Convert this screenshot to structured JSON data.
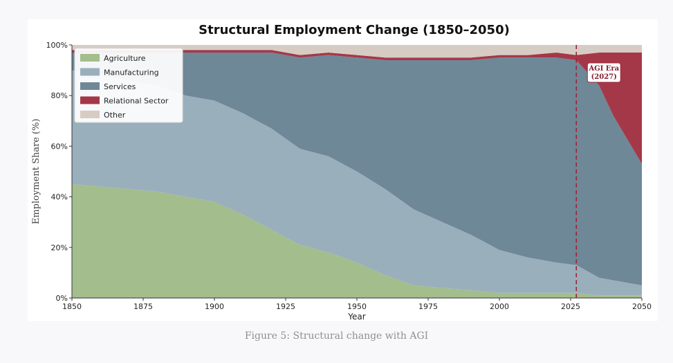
{
  "caption": "Figure 5: Structural change with AGI",
  "chart_data": {
    "type": "area",
    "stacked": true,
    "title": "Structural Employment Change (1850–2050)",
    "xlabel": "Year",
    "ylabel": "Employment Share (%)",
    "xlim": [
      1850,
      2050
    ],
    "ylim": [
      0,
      100
    ],
    "x_ticks": [
      "1850",
      "1875",
      "1900",
      "1925",
      "1950",
      "1975",
      "2000",
      "2025",
      "2050"
    ],
    "y_ticks": [
      "0%",
      "20%",
      "40%",
      "60%",
      "80%",
      "100%"
    ],
    "grid": false,
    "legend_position": "top-left",
    "x": [
      1850,
      1860,
      1870,
      1880,
      1890,
      1900,
      1910,
      1920,
      1930,
      1940,
      1950,
      1960,
      1970,
      1980,
      1990,
      2000,
      2010,
      2020,
      2027,
      2035,
      2040,
      2050
    ],
    "series": [
      {
        "name": "Agriculture",
        "color": "#a3bd8c",
        "values": [
          45,
          44,
          43,
          42,
          40,
          38,
          33,
          27,
          21,
          18,
          14,
          9,
          5,
          4,
          3,
          2,
          2,
          2,
          2,
          1,
          1,
          1
        ]
      },
      {
        "name": "Manufacturing",
        "color": "#9aafbc",
        "values": [
          45,
          44,
          43,
          42,
          40,
          40,
          40,
          40,
          38,
          38,
          36,
          34,
          30,
          26,
          22,
          17,
          14,
          12,
          11,
          7,
          6,
          4
        ]
      },
      {
        "name": "Services",
        "color": "#6e8898",
        "values": [
          7,
          9,
          11,
          13,
          17,
          19,
          24,
          30,
          36,
          40,
          45,
          51,
          59,
          64,
          69,
          76,
          79,
          81,
          81,
          76,
          65,
          48
        ]
      },
      {
        "name": "Relational Sector",
        "color": "#a53848",
        "values": [
          1,
          1,
          1,
          1,
          1,
          1,
          1,
          1,
          1,
          1,
          1,
          1,
          1,
          1,
          1,
          1,
          1,
          2,
          2,
          13,
          25,
          44
        ]
      },
      {
        "name": "Other",
        "color": "#d6ccc4",
        "values": [
          2,
          2,
          2,
          2,
          2,
          2,
          2,
          2,
          4,
          3,
          4,
          5,
          5,
          5,
          5,
          4,
          4,
          3,
          4,
          3,
          3,
          3
        ]
      }
    ],
    "annotations": [
      {
        "type": "vertical-line",
        "x": 2027,
        "color": "#9b2436",
        "style": "dashed",
        "label_lines": [
          "AGI Era",
          "(2027)"
        ]
      }
    ]
  }
}
